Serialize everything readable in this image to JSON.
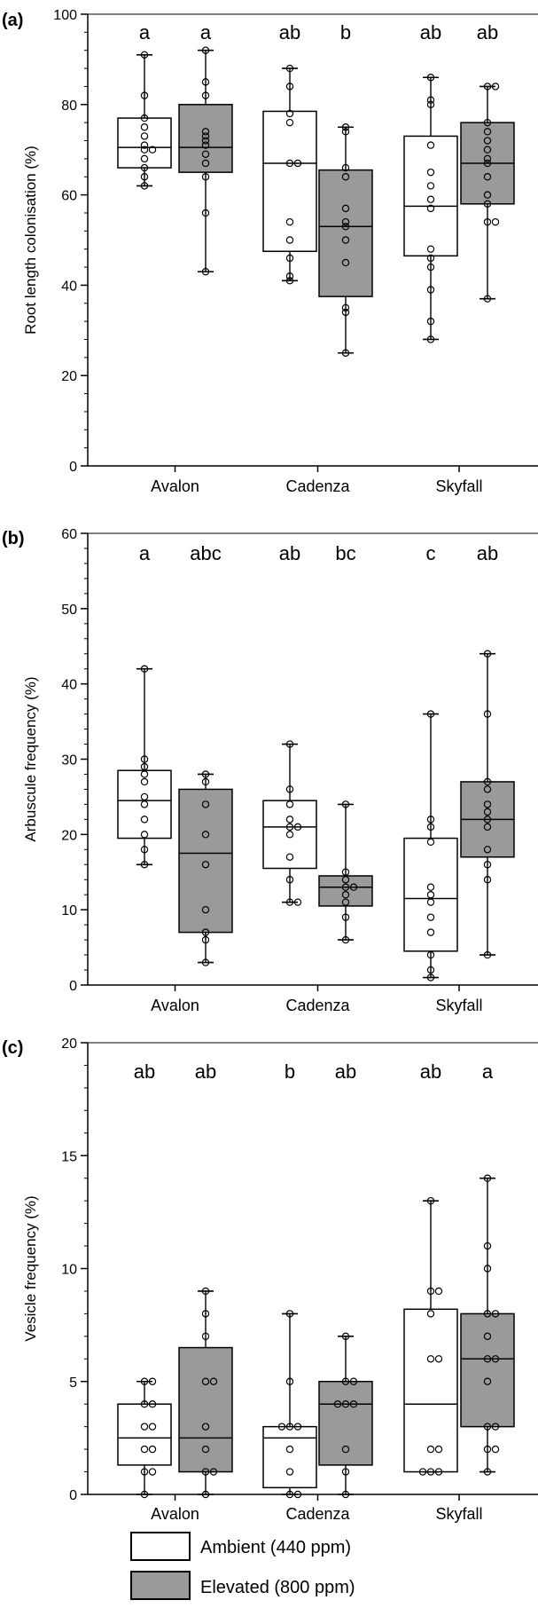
{
  "chart_data": [
    {
      "type": "box",
      "panel": "(a)",
      "ylabel": "Root length colonisation (%)",
      "ylim": [
        0,
        100
      ],
      "yticks": [
        0,
        20,
        40,
        60,
        80,
        100
      ],
      "categories": [
        "Avalon",
        "Cadenza",
        "Skyfall"
      ],
      "letters": [
        "a",
        "a",
        "ab",
        "b",
        "ab",
        "ab"
      ],
      "boxes": [
        {
          "category": "Avalon",
          "series": "Ambient (440 ppm)",
          "min": 62,
          "q1": 66,
          "median": 70.5,
          "q3": 77,
          "max": 91,
          "points": [
            62,
            64,
            66,
            68,
            70,
            70,
            71,
            73,
            75,
            77,
            82,
            91
          ]
        },
        {
          "category": "Avalon",
          "series": "Elevated (800 ppm)",
          "min": 43,
          "q1": 65,
          "median": 70.5,
          "q3": 80,
          "max": 92,
          "points": [
            43,
            56,
            64,
            67,
            69,
            71,
            72,
            73,
            74,
            82,
            85,
            92
          ]
        },
        {
          "category": "Cadenza",
          "series": "Ambient (440 ppm)",
          "min": 41,
          "q1": 47.5,
          "median": 67,
          "q3": 78.5,
          "max": 88,
          "points": [
            41,
            42,
            46,
            50,
            54,
            67,
            67,
            76,
            78,
            84,
            88
          ]
        },
        {
          "category": "Cadenza",
          "series": "Elevated (800 ppm)",
          "min": 25,
          "q1": 37.5,
          "median": 53,
          "q3": 65.5,
          "max": 75,
          "points": [
            25,
            34,
            35,
            45,
            50,
            53,
            54,
            57,
            64,
            66,
            74,
            75
          ]
        },
        {
          "category": "Skyfall",
          "series": "Ambient (440 ppm)",
          "min": 28,
          "q1": 46.5,
          "median": 57.5,
          "q3": 73,
          "max": 86,
          "points": [
            28,
            32,
            39,
            44,
            46,
            48,
            57,
            59,
            62,
            65,
            71,
            80,
            81,
            86
          ]
        },
        {
          "category": "Skyfall",
          "series": "Elevated (800 ppm)",
          "min": 37,
          "q1": 58,
          "median": 67,
          "q3": 76,
          "max": 84,
          "points": [
            37,
            54,
            54,
            58,
            60,
            64,
            67,
            68,
            70,
            72,
            74,
            76,
            84,
            84
          ]
        }
      ]
    },
    {
      "type": "box",
      "panel": "(b)",
      "ylabel": "Arbuscule frequency (%)",
      "ylim": [
        0,
        60
      ],
      "yticks": [
        0,
        10,
        20,
        30,
        40,
        50,
        60
      ],
      "categories": [
        "Avalon",
        "Cadenza",
        "Skyfall"
      ],
      "letters": [
        "a",
        "abc",
        "ab",
        "bc",
        "c",
        "ab"
      ],
      "boxes": [
        {
          "category": "Avalon",
          "series": "Ambient (440 ppm)",
          "min": 16,
          "q1": 19.5,
          "median": 24.5,
          "q3": 28.5,
          "max": 42,
          "points": [
            16,
            18,
            20,
            22,
            24,
            25,
            27,
            28,
            29,
            30,
            42
          ]
        },
        {
          "category": "Avalon",
          "series": "Elevated (800 ppm)",
          "min": 3,
          "q1": 7,
          "median": 17.5,
          "q3": 26,
          "max": 28,
          "points": [
            3,
            6,
            7,
            10,
            16,
            20,
            24,
            27,
            28
          ]
        },
        {
          "category": "Cadenza",
          "series": "Ambient (440 ppm)",
          "min": 11,
          "q1": 15.5,
          "median": 21,
          "q3": 24.5,
          "max": 32,
          "points": [
            11,
            11,
            14,
            17,
            20,
            21,
            21,
            22,
            24,
            26,
            32
          ]
        },
        {
          "category": "Cadenza",
          "series": "Elevated (800 ppm)",
          "min": 6,
          "q1": 10.5,
          "median": 13,
          "q3": 14.5,
          "max": 24,
          "points": [
            6,
            9,
            11,
            12,
            13,
            13,
            14,
            15,
            24
          ]
        },
        {
          "category": "Skyfall",
          "series": "Ambient (440 ppm)",
          "min": 1,
          "q1": 4.5,
          "median": 11.5,
          "q3": 19.5,
          "max": 36,
          "points": [
            1,
            2,
            4,
            7,
            9,
            11,
            12,
            13,
            19,
            21,
            22,
            36
          ]
        },
        {
          "category": "Skyfall",
          "series": "Elevated (800 ppm)",
          "min": 4,
          "q1": 17,
          "median": 22,
          "q3": 27,
          "max": 44,
          "points": [
            4,
            14,
            16,
            18,
            21,
            22,
            23,
            24,
            26,
            27,
            36,
            44
          ]
        }
      ]
    },
    {
      "type": "box",
      "panel": "(c)",
      "ylabel": "Vesicle frequency (%)",
      "ylim": [
        0,
        20
      ],
      "yticks": [
        0,
        5,
        10,
        15,
        20
      ],
      "categories": [
        "Avalon",
        "Cadenza",
        "Skyfall"
      ],
      "letters": [
        "ab",
        "ab",
        "b",
        "ab",
        "ab",
        "a"
      ],
      "boxes": [
        {
          "category": "Avalon",
          "series": "Ambient (440 ppm)",
          "min": 0,
          "q1": 1.3,
          "median": 2.5,
          "q3": 4,
          "max": 5,
          "points": [
            0,
            1,
            1,
            2,
            2,
            3,
            3,
            4,
            4,
            5,
            5
          ]
        },
        {
          "category": "Avalon",
          "series": "Elevated (800 ppm)",
          "min": 0,
          "q1": 1,
          "median": 2.5,
          "q3": 6.5,
          "max": 9,
          "points": [
            0,
            1,
            1,
            2,
            3,
            5,
            5,
            7,
            8,
            9
          ]
        },
        {
          "category": "Cadenza",
          "series": "Ambient (440 ppm)",
          "min": 0,
          "q1": 0.3,
          "median": 2.5,
          "q3": 3,
          "max": 8,
          "points": [
            0,
            0,
            1,
            2,
            3,
            3,
            3,
            5,
            8
          ]
        },
        {
          "category": "Cadenza",
          "series": "Elevated (800 ppm)",
          "min": 0,
          "q1": 1.3,
          "median": 4,
          "q3": 5,
          "max": 7,
          "points": [
            0,
            1,
            2,
            4,
            4,
            4,
            5,
            5,
            7
          ]
        },
        {
          "category": "Skyfall",
          "series": "Ambient (440 ppm)",
          "min": 1,
          "q1": 1,
          "median": 4,
          "q3": 8.2,
          "max": 13,
          "points": [
            1,
            1,
            1,
            2,
            2,
            6,
            6,
            8,
            9,
            9,
            13
          ]
        },
        {
          "category": "Skyfall",
          "series": "Elevated (800 ppm)",
          "min": 1,
          "q1": 3,
          "median": 6,
          "q3": 8,
          "max": 14,
          "points": [
            1,
            2,
            2,
            3,
            3,
            5,
            6,
            6,
            7,
            8,
            8,
            10,
            11,
            14
          ]
        }
      ]
    }
  ],
  "legend": {
    "items": [
      {
        "label": "Ambient (440 ppm)",
        "fill": "#ffffff"
      },
      {
        "label": "Elevated (800 ppm)",
        "fill": "#9a9a9a"
      }
    ]
  },
  "colors": {
    "ambient_fill": "#ffffff",
    "elevated_fill": "#9a9a9a",
    "stroke": "#000000"
  }
}
